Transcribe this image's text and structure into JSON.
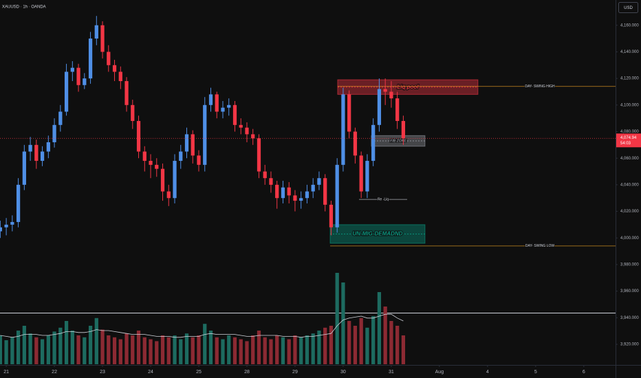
{
  "chart_data": {
    "type": "candlestick",
    "title": "XAUUSD · 1h · OANDA",
    "currency": "USD",
    "x": [
      -0.125,
      0,
      0.125,
      0.25,
      0.375,
      0.5,
      0.625,
      0.75,
      0.875,
      1,
      1.125,
      1.25,
      1.375,
      1.5,
      1.625,
      1.75,
      1.875,
      2,
      2.125,
      2.25,
      2.375,
      2.5,
      2.625,
      2.75,
      2.875,
      3,
      3.125,
      3.25,
      3.375,
      3.5,
      3.625,
      3.75,
      3.875,
      4,
      4.125,
      4.25,
      4.375,
      4.5,
      4.625,
      4.75,
      4.875,
      5,
      5.125,
      5.25,
      5.375,
      5.5,
      5.625,
      5.75,
      5.875,
      6,
      6.125,
      6.25,
      6.375,
      6.5,
      6.625,
      6.75,
      6.875,
      7,
      7.125,
      7.25,
      7.375,
      7.5,
      7.625,
      7.75,
      7.875,
      8,
      8.125,
      8.25
    ],
    "open": [
      4005,
      4008,
      4010,
      4012,
      4040,
      4065,
      4070,
      4058,
      4065,
      4072,
      4085,
      4095,
      4125,
      4128,
      4115,
      4120,
      4150,
      4160,
      4140,
      4130,
      4125,
      4118,
      4100,
      4088,
      4065,
      4058,
      4055,
      4052,
      4035,
      4030,
      4058,
      4065,
      4078,
      4062,
      4055,
      4100,
      4108,
      4095,
      4098,
      4100,
      4085,
      4083,
      4078,
      4075,
      4050,
      4045,
      4040,
      4030,
      4038,
      4032,
      4028,
      4030,
      4035,
      4040,
      4045,
      4025,
      4008,
      4055,
      4108,
      4080,
      4062,
      4035,
      4058,
      4085,
      4112,
      4110,
      4105,
      4088
    ],
    "high": [
      4013,
      4015,
      4017,
      4045,
      4070,
      4076,
      4074,
      4069,
      4077,
      4090,
      4100,
      4131,
      4133,
      4131,
      4124,
      4155,
      4167,
      4163,
      4145,
      4134,
      4129,
      4121,
      4104,
      4092,
      4069,
      4063,
      4060,
      4056,
      4040,
      4063,
      4070,
      4083,
      4081,
      4066,
      4106,
      4113,
      4110,
      4103,
      4105,
      4103,
      4090,
      4087,
      4082,
      4078,
      4055,
      4050,
      4043,
      4043,
      4042,
      4036,
      4035,
      4040,
      4045,
      4050,
      4048,
      4028,
      4060,
      4113,
      4111,
      4083,
      4065,
      4063,
      4090,
      4120,
      4120,
      4118,
      4110,
      4092
    ],
    "low": [
      4000,
      4002,
      4005,
      4008,
      4036,
      4058,
      4052,
      4054,
      4060,
      4068,
      4080,
      4092,
      4118,
      4110,
      4112,
      4116,
      4145,
      4135,
      4125,
      4118,
      4112,
      4095,
      4082,
      4060,
      4050,
      4045,
      4046,
      4028,
      4024,
      4026,
      4052,
      4060,
      4056,
      4050,
      4050,
      4095,
      4090,
      4090,
      4092,
      4080,
      4078,
      4072,
      4070,
      4045,
      4040,
      4034,
      4022,
      4026,
      4026,
      4020,
      4022,
      4026,
      4030,
      4036,
      4020,
      4002,
      4004,
      4050,
      4075,
      4056,
      4030,
      4030,
      4054,
      4080,
      4100,
      4098,
      4082,
      4070
    ],
    "close": [
      4008,
      4010,
      4012,
      4040,
      4065,
      4070,
      4058,
      4065,
      4072,
      4085,
      4095,
      4125,
      4128,
      4115,
      4120,
      4150,
      4160,
      4140,
      4130,
      4125,
      4118,
      4100,
      4088,
      4065,
      4058,
      4055,
      4052,
      4035,
      4030,
      4058,
      4065,
      4078,
      4062,
      4055,
      4100,
      4108,
      4095,
      4098,
      4100,
      4085,
      4083,
      4078,
      4075,
      4050,
      4045,
      4040,
      4030,
      4038,
      4032,
      4028,
      4030,
      4035,
      4040,
      4045,
      4025,
      4008,
      4055,
      4108,
      4080,
      4062,
      4035,
      4058,
      4085,
      4112,
      4110,
      4105,
      4088,
      4075
    ],
    "volume": [
      30,
      25,
      28,
      35,
      40,
      32,
      28,
      26,
      30,
      34,
      38,
      45,
      35,
      30,
      28,
      40,
      48,
      36,
      30,
      28,
      26,
      32,
      30,
      35,
      28,
      26,
      24,
      30,
      28,
      30,
      26,
      32,
      28,
      30,
      42,
      35,
      28,
      26,
      30,
      28,
      26,
      24,
      30,
      35,
      28,
      26,
      30,
      28,
      26,
      30,
      28,
      30,
      32,
      35,
      38,
      40,
      95,
      85,
      45,
      40,
      48,
      38,
      50,
      75,
      60,
      45,
      40,
      30
    ],
    "volume_ma": [
      30,
      29,
      28,
      29,
      31,
      31,
      31,
      30,
      30,
      31,
      32,
      34,
      34,
      33,
      33,
      34,
      36,
      35,
      35,
      34,
      33,
      32,
      31,
      31,
      31,
      30,
      29,
      29,
      29,
      28,
      28,
      29,
      29,
      29,
      31,
      32,
      31,
      31,
      31,
      31,
      30,
      29,
      29,
      30,
      30,
      30,
      30,
      29,
      29,
      29,
      28,
      29,
      29,
      30,
      31,
      32,
      40,
      46,
      48,
      49,
      50,
      48,
      48,
      50,
      52,
      52,
      48,
      45
    ],
    "vlim": [
      0,
      100
    ],
    "up_color": "#4f8fe6",
    "down_color": "#f23645",
    "up_volume_color": "#1d6b60",
    "down_volume_color": "#8c2a33",
    "xlim": [
      -0.13,
      12.66
    ],
    "xticks": [
      {
        "value": 0,
        "label": "21"
      },
      {
        "value": 1,
        "label": "22"
      },
      {
        "value": 2,
        "label": "23"
      },
      {
        "value": 3,
        "label": "24"
      },
      {
        "value": 4,
        "label": "25"
      },
      {
        "value": 5,
        "label": "28"
      },
      {
        "value": 6,
        "label": "29"
      },
      {
        "value": 7,
        "label": "30"
      },
      {
        "value": 8,
        "label": "31"
      },
      {
        "value": 9,
        "label": "Aug"
      },
      {
        "value": 10,
        "label": "4"
      },
      {
        "value": 11,
        "label": "5"
      },
      {
        "value": 12,
        "label": "6"
      }
    ],
    "ylim": [
      3905,
      4179
    ],
    "yticks": [
      {
        "value": 3920,
        "label": "3,920.000"
      },
      {
        "value": 3940,
        "label": "3,940.000"
      },
      {
        "value": 3960,
        "label": "3,960.000"
      },
      {
        "value": 3980,
        "label": "3,980.000"
      },
      {
        "value": 4000,
        "label": "4,000.000"
      },
      {
        "value": 4020,
        "label": "4,020.000"
      },
      {
        "value": 4040,
        "label": "4,040.000"
      },
      {
        "value": 4060,
        "label": "4,060.000"
      },
      {
        "value": 4080,
        "label": "4,080.000"
      },
      {
        "value": 4100,
        "label": "4,100.000"
      },
      {
        "value": 4120,
        "label": "4,120.000"
      },
      {
        "value": 4140,
        "label": "4,140.000"
      },
      {
        "value": 4160,
        "label": "4,160.000"
      }
    ],
    "last_price": {
      "value": 4074.94,
      "label": "4,074.94"
    },
    "countdown": "54:03",
    "zones": [
      {
        "label": "Liq pool",
        "x": [
          6.886,
          9.8
        ],
        "y": [
          4108,
          4119
        ],
        "color": "#f23645"
      },
      {
        "label": "FIB ZONE",
        "x": [
          7.586,
          8.7
        ],
        "y": [
          4069,
          4077
        ],
        "color": "#9598a1"
      },
      {
        "label": "UN-MIG-DEMADND",
        "x": [
          6.73,
          8.7
        ],
        "y": [
          3996,
          4010
        ],
        "color": "#089981"
      }
    ],
    "levels": [
      {
        "label": "DAY- SWING HIGH",
        "x": [
          6.886,
          12.66
        ],
        "y": 4114,
        "color": "#f5a623"
      },
      {
        "label": "Re -Liq",
        "x": [
          7.33,
          8.33
        ],
        "y": 4029,
        "color": "#d1d4dc"
      },
      {
        "label": "DAY- SWING LOW",
        "x": [
          6.73,
          12.66
        ],
        "y": 3994,
        "color": "#f5a623"
      }
    ]
  }
}
